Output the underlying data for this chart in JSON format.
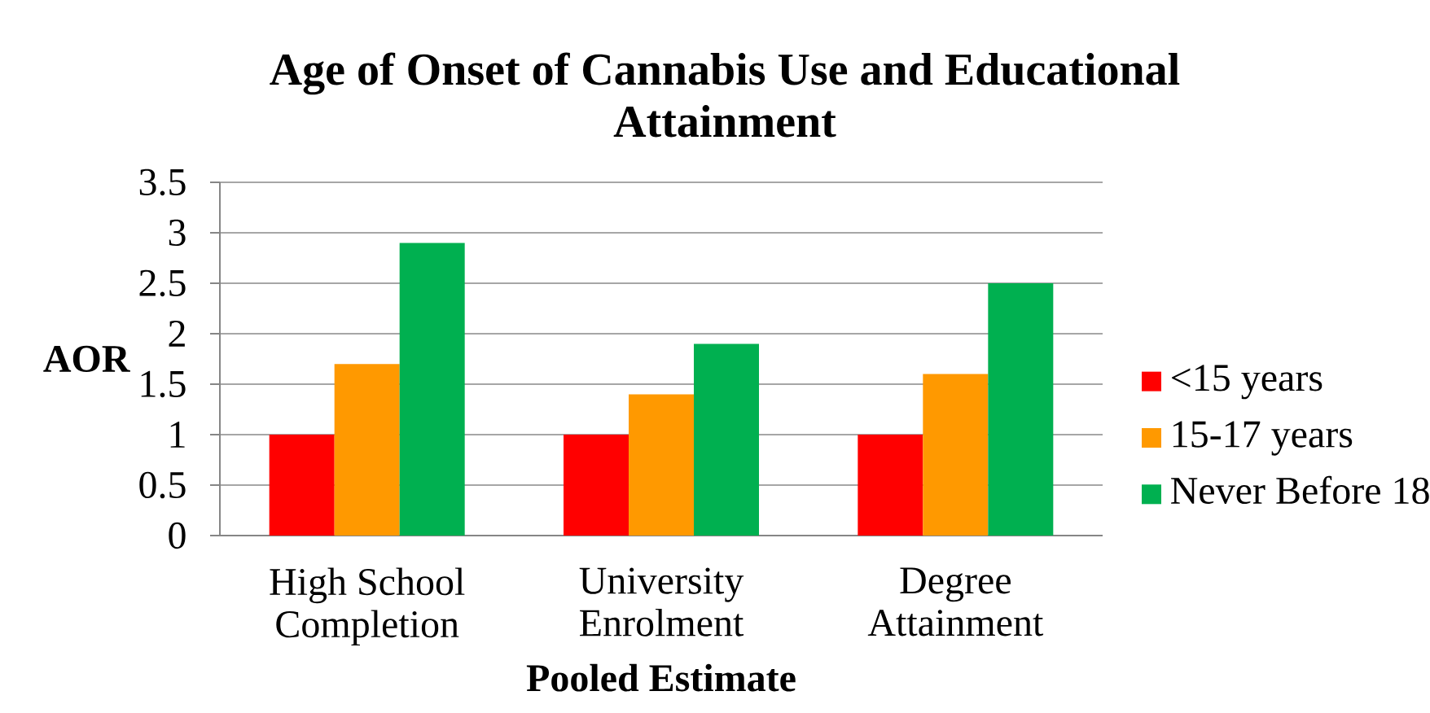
{
  "chart_data": {
    "type": "bar",
    "title": "Age of Onset of Cannabis Use and Educational Attainment",
    "xlabel": "Pooled Estimate",
    "ylabel": "AOR",
    "categories": [
      "High School Completion",
      "University Enrolment",
      "Degree Attainment"
    ],
    "series": [
      {
        "name": "<15 years",
        "color": "#ff0000",
        "values": [
          1,
          1,
          1
        ]
      },
      {
        "name": "15-17 years",
        "color": "#ff9900",
        "values": [
          1.7,
          1.4,
          1.6
        ]
      },
      {
        "name": "Never Before 18",
        "color": "#00b050",
        "values": [
          2.9,
          1.9,
          2.5
        ]
      }
    ],
    "ylim": [
      0,
      3.5
    ],
    "yticks": [
      0,
      0.5,
      1,
      1.5,
      2,
      2.5,
      3,
      3.5
    ],
    "grid": "y",
    "legend": "right"
  }
}
